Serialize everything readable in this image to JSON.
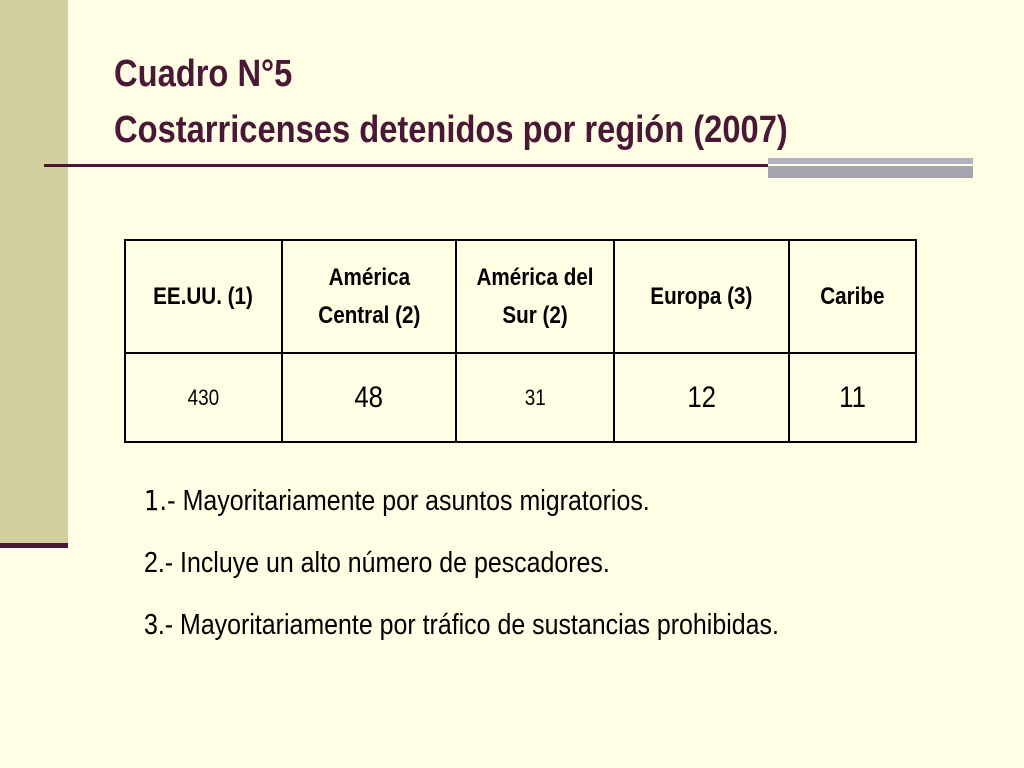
{
  "title": {
    "line1": "Cuadro N°5",
    "line2": "Costarricenses detenidos por región (2007)"
  },
  "table": {
    "headers": [
      [
        "EE.UU. (1)"
      ],
      [
        "América",
        "Central (2)"
      ],
      [
        "América del",
        "Sur (2)"
      ],
      [
        "Europa (3)"
      ],
      [
        "Caribe"
      ]
    ],
    "values": [
      "430",
      "48",
      "31",
      "12",
      "11"
    ]
  },
  "notes": [
    {
      "marker": "1.-",
      "text": "Mayoritariamente por asuntos migratorios."
    },
    {
      "marker": "2.-",
      "text": "Incluye un alto número de pescadores."
    },
    {
      "marker": "3.-",
      "text": "Mayoritariamente por tráfico de sustancias prohibidas."
    }
  ],
  "colors": {
    "background": "#FFFDE3",
    "side_bar": "#D1CF9E",
    "accent": "#4A1837",
    "grey_rule": "#B4B1C2"
  }
}
